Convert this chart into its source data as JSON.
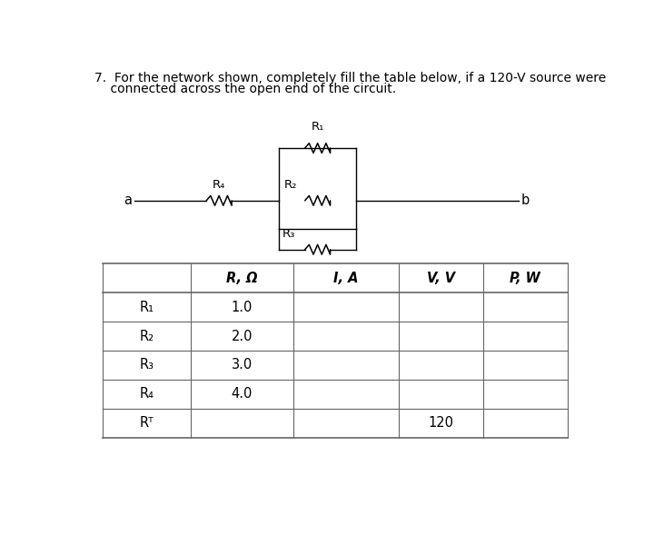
{
  "title_line1": "7.  For the network shown, completely fill the table below, if a 120-V source were",
  "title_line2": "    connected across the open end of the circuit.",
  "bg_color": "#ffffff",
  "table_header": [
    "",
    "R, Ω",
    "I, A",
    "V, V",
    "P, W"
  ],
  "table_rows": [
    [
      "R₁",
      "1.0",
      "",
      "",
      ""
    ],
    [
      "R₂",
      "2.0",
      "",
      "",
      ""
    ],
    [
      "R₃",
      "3.0",
      "",
      "",
      ""
    ],
    [
      "R₄",
      "4.0",
      "",
      "",
      ""
    ],
    [
      "Rᵀ",
      "",
      "",
      "120",
      ""
    ]
  ],
  "circuit": {
    "R1_label": "R₁",
    "R2_label": "R₂",
    "R3_label": "R₃",
    "R4_label": "R₄",
    "a_label": "a",
    "b_label": "b"
  },
  "font_size_title": 10.0,
  "font_size_circuit": 9.5,
  "font_size_table": 10.5,
  "table_border_color": "#666666",
  "table_header_border": "#333333"
}
